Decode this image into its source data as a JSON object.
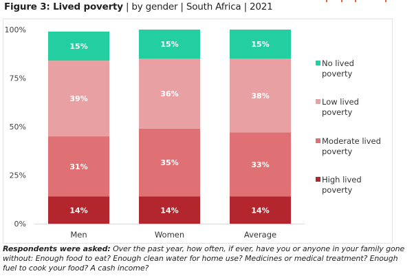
{
  "header": {
    "title_bold": "Figure 3: Lived poverty",
    "title_rest": " | by gender | South Africa | 2021"
  },
  "caption": {
    "lead": "Respondents were asked:",
    "text": " Over the past year, how often, if ever, have you or anyone in your family gone without: Enough food to eat? Enough clean water for home use? Medicines or medical treatment? Enough fuel to cook your food? A cash income?"
  },
  "colors": {
    "no": "#23cfa0",
    "low": "#e8a0a3",
    "moderate": "#df7073",
    "high": "#b3262d",
    "axis": "#d9d9d9",
    "label_text": "#ffffff",
    "tick_text": "#404040"
  },
  "chart_data": {
    "type": "bar",
    "stacked": true,
    "orientation": "vertical",
    "title": "Figure 3: Lived poverty | by gender | South Africa | 2021",
    "xlabel": "",
    "ylabel": "",
    "categories": [
      "Men",
      "Women",
      "Average"
    ],
    "ylim": [
      0,
      100
    ],
    "yticks": [
      0,
      25,
      50,
      75,
      100
    ],
    "ytick_labels": [
      "0%",
      "25%",
      "50%",
      "75%",
      "100%"
    ],
    "grid": false,
    "legend_position": "right",
    "series": [
      {
        "name": "High lived poverty",
        "color_key": "high",
        "values": [
          14,
          14,
          14
        ]
      },
      {
        "name": "Moderate lived poverty",
        "color_key": "moderate",
        "values": [
          31,
          35,
          33
        ]
      },
      {
        "name": "Low lived poverty",
        "color_key": "low",
        "values": [
          39,
          36,
          38
        ]
      },
      {
        "name": "No lived poverty",
        "color_key": "no",
        "values": [
          15,
          15,
          15
        ]
      }
    ],
    "legend": [
      {
        "line1": "No lived",
        "line2": "poverty",
        "color_key": "no"
      },
      {
        "line1": "Low lived",
        "line2": "poverty",
        "color_key": "low"
      },
      {
        "line1": "Moderate lived",
        "line2": "poverty",
        "color_key": "moderate"
      },
      {
        "line1": "High lived",
        "line2": "poverty",
        "color_key": "high"
      }
    ]
  }
}
